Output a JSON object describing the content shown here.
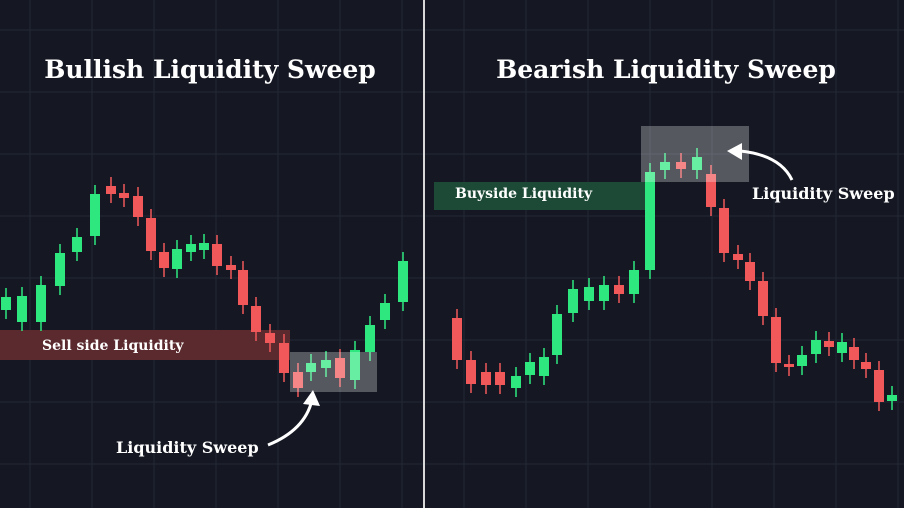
{
  "left": {
    "title": "Bullish Liquidity Sweep",
    "zone_label": "Sell side Liquidity",
    "sweep_label": "Liquidity Sweep"
  },
  "right": {
    "title": "Bearish Liquidity Sweep",
    "zone_label": "Buyside Liquidity",
    "sweep_label": "Liquidity Sweep"
  }
}
